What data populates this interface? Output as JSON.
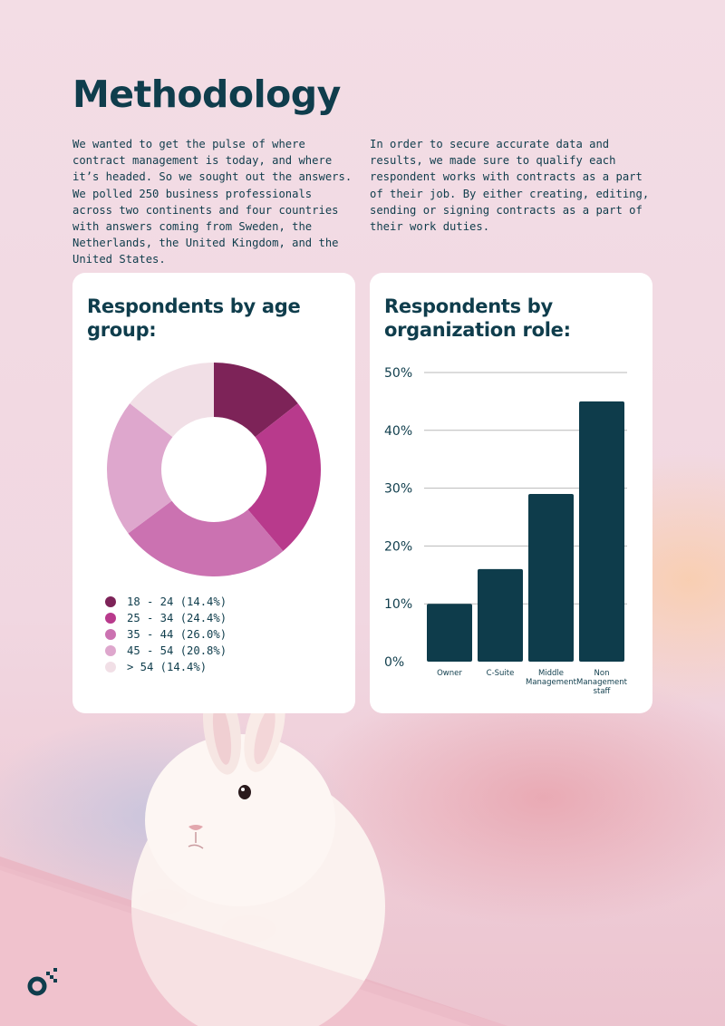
{
  "page": {
    "title": "Methodology",
    "intro_left": "We wanted to get the pulse of where contract management is today, and where it’s headed. So we sought out the answers. We polled 250 business professionals across two continents and four countries with answers coming from Sweden, the Netherlands, the United Kingdom, and the United States.",
    "intro_right": "In order to secure accurate data and results, we made sure to qualify each respondent works with contracts as a part of their job. By either creating, editing, sending or signing contracts as a part of their work duties."
  },
  "age_card": {
    "title": "Respondents by age group:"
  },
  "role_card": {
    "title": "Respondents by organization role:"
  },
  "logo": {
    "icon": "brand-logo-icon"
  },
  "chart_data": [
    {
      "type": "pie",
      "title": "Respondents by age group:",
      "categories": [
        "18 - 24",
        "25 - 34",
        "35 - 44",
        "45 - 54",
        "> 54"
      ],
      "values": [
        14.4,
        24.4,
        26.0,
        20.8,
        14.4
      ],
      "legend_labels": [
        "18 - 24 (14.4%)",
        "25 - 34 (24.4%)",
        "35 - 44 (26.0%)",
        "45 - 54 (20.8%)",
        "> 54 (14.4%)"
      ],
      "colors": [
        "#7d2358",
        "#b83a8c",
        "#cb72b1",
        "#dea7cd",
        "#f1dfe6"
      ],
      "legend_position": "bottom"
    },
    {
      "type": "bar",
      "title": "Respondents by organization role:",
      "categories": [
        "Owner",
        "C-Suite",
        "Middle Management",
        "Non Management staff"
      ],
      "values": [
        10,
        16,
        29,
        45
      ],
      "ylim": [
        0,
        50
      ],
      "yticks": [
        "0%",
        "10%",
        "20%",
        "30%",
        "40%",
        "50%"
      ],
      "grid": true,
      "color": "#0e3c4b"
    }
  ]
}
